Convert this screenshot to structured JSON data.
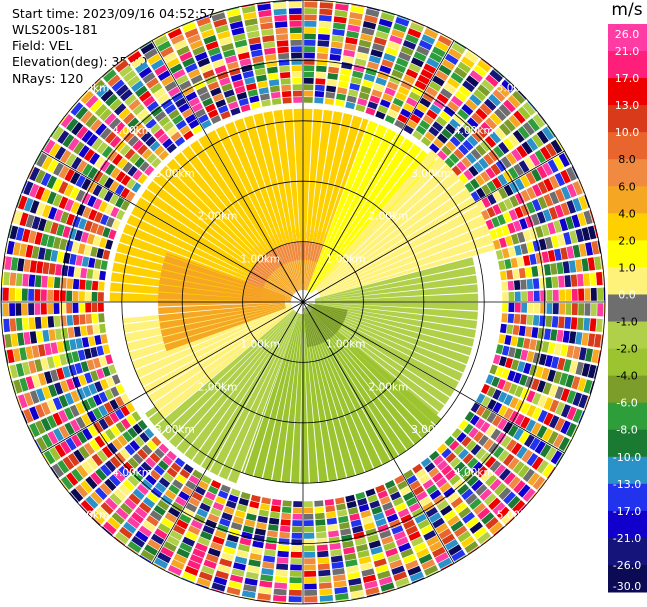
{
  "header": {
    "start_time": "Start time: 2023/09/16 04:52:57",
    "instrument": "WLS200s-181",
    "field": "Field: VEL",
    "elevation": "Elevation(deg): 35.30",
    "nrays": "NRays: 120"
  },
  "chart_data": {
    "type": "polar-ppi",
    "field": "VEL",
    "units": "m/s",
    "nrays": 120,
    "range_rings_km": [
      1.0,
      2.0,
      3.0,
      4.0,
      5.0
    ],
    "ring_labels": [
      "1.00km",
      "2.00km",
      "3.00km",
      "4.00km",
      "5.00km"
    ],
    "max_range_km": 5.0,
    "spoke_angles_deg": [
      0,
      30,
      60,
      90,
      120,
      150,
      180,
      210,
      240,
      270,
      300,
      330
    ],
    "colorbar": {
      "label": "m/s",
      "ticks": [
        "26.0",
        "21.0",
        "17.0",
        "13.0",
        "10.0",
        "8.0",
        "6.0",
        "4.0",
        "2.0",
        "1.0",
        "0.0",
        "-1.0",
        "-2.0",
        "-4.0",
        "-6.0",
        "-8.0",
        "-10.0",
        "-13.0",
        "-17.0",
        "-21.0",
        "-26.0",
        "-30.0"
      ],
      "colors": [
        "#ff3ba4",
        "#ff1f7a",
        "#ee0000",
        "#d93a1a",
        "#e8662e",
        "#f08a40",
        "#f5a623",
        "#ffd000",
        "#ffff00",
        "#fff27a",
        "#6e6e6e",
        "#b0d04a",
        "#9bc430",
        "#7c9d2a",
        "#2e9e3a",
        "#1a7a32",
        "#2a92c8",
        "#2233ee",
        "#1100cc",
        "#14147a",
        "#0a0a55"
      ]
    },
    "sectors": [
      {
        "from_az": 270,
        "to_az": 20,
        "inner_km": 0.2,
        "outer_km": 1.0,
        "value": 4
      },
      {
        "from_az": 270,
        "to_az": 20,
        "inner_km": 0.7,
        "outer_km": 1.2,
        "value": 6
      },
      {
        "from_az": 270,
        "to_az": 20,
        "inner_km": 1.0,
        "outer_km": 3.2,
        "value": 2
      },
      {
        "from_az": 20,
        "to_az": 45,
        "inner_km": 0.2,
        "outer_km": 3.2,
        "value": 1
      },
      {
        "from_az": 40,
        "to_az": 75,
        "inner_km": 0.3,
        "outer_km": 3.3,
        "value": 0
      },
      {
        "from_az": 75,
        "to_az": 135,
        "inner_km": 0.2,
        "outer_km": 2.9,
        "value": -2
      },
      {
        "from_az": 130,
        "to_az": 200,
        "inner_km": 0.2,
        "outer_km": 3.0,
        "value": -4
      },
      {
        "from_az": 100,
        "to_az": 175,
        "inner_km": 0.1,
        "outer_km": 0.75,
        "value": -6
      },
      {
        "from_az": 200,
        "to_az": 235,
        "inner_km": 0.2,
        "outer_km": 3.2,
        "value": -2
      },
      {
        "from_az": 230,
        "to_az": 265,
        "inner_km": 0.2,
        "outer_km": 3.0,
        "value": 0
      },
      {
        "from_az": 250,
        "to_az": 290,
        "inner_km": 0.3,
        "outer_km": 2.4,
        "value": 4
      }
    ],
    "noise_beyond_km": 3.3
  }
}
